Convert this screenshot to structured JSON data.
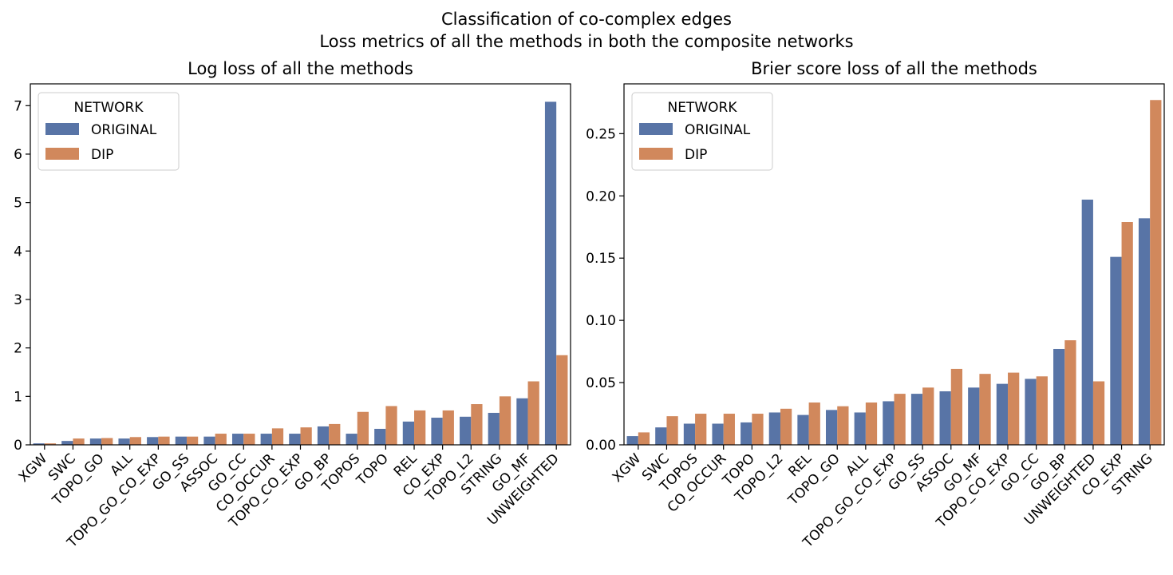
{
  "figure": {
    "suptitle_line1": "Classification of co-complex edges",
    "suptitle_line2": "Loss metrics of all the methods in both the composite networks"
  },
  "colors": {
    "ORIGINAL": "#5874a6",
    "DIP": "#d1885c"
  },
  "chart_data": [
    {
      "type": "bar",
      "title": "Log loss of all the methods",
      "xlabel": "",
      "ylabel": "",
      "ylim": [
        0,
        7.45
      ],
      "yticks": [
        0,
        1,
        2,
        3,
        4,
        5,
        6,
        7
      ],
      "grid": false,
      "legend": {
        "title": "NETWORK",
        "placement": "top-left"
      },
      "categories": [
        "XGW",
        "SWC",
        "TOPO_GO",
        "ALL",
        "TOPO_GO_CO_EXP",
        "GO_SS",
        "ASSOC",
        "GO_CC",
        "CO_OCCUR",
        "TOPO_CO_EXP",
        "GO_BP",
        "TOPOS",
        "TOPO",
        "REL",
        "CO_EXP",
        "TOPO_L2",
        "STRING",
        "GO_MF",
        "UNWEIGHTED"
      ],
      "series": [
        {
          "name": "ORIGINAL",
          "values": [
            0.03,
            0.08,
            0.13,
            0.13,
            0.16,
            0.17,
            0.17,
            0.23,
            0.23,
            0.23,
            0.38,
            0.23,
            0.33,
            0.48,
            0.56,
            0.58,
            0.66,
            0.96,
            7.08
          ]
        },
        {
          "name": "DIP",
          "values": [
            0.03,
            0.13,
            0.14,
            0.16,
            0.17,
            0.17,
            0.23,
            0.23,
            0.34,
            0.36,
            0.43,
            0.68,
            0.8,
            0.71,
            0.71,
            0.84,
            1.0,
            1.31,
            1.85
          ]
        }
      ]
    },
    {
      "type": "bar",
      "title": "Brier score loss of all the methods",
      "xlabel": "",
      "ylabel": "",
      "ylim": [
        0,
        0.29
      ],
      "yticks": [
        "0.00",
        "0.05",
        "0.10",
        "0.15",
        "0.20",
        "0.25"
      ],
      "grid": false,
      "legend": {
        "title": "NETWORK",
        "placement": "top-left"
      },
      "categories": [
        "XGW",
        "SWC",
        "TOPOS",
        "CO_OCCUR",
        "TOPO",
        "TOPO_L2",
        "REL",
        "TOPO_GO",
        "ALL",
        "TOPO_GO_CO_EXP",
        "GO_SS",
        "ASSOC",
        "GO_MF",
        "TOPO_CO_EXP",
        "GO_CC",
        "GO_BP",
        "UNWEIGHTED",
        "CO_EXP",
        "STRING"
      ],
      "series": [
        {
          "name": "ORIGINAL",
          "values": [
            0.007,
            0.014,
            0.017,
            0.017,
            0.018,
            0.026,
            0.024,
            0.028,
            0.026,
            0.035,
            0.041,
            0.043,
            0.046,
            0.049,
            0.053,
            0.077,
            0.197,
            0.151,
            0.182
          ]
        },
        {
          "name": "DIP",
          "values": [
            0.01,
            0.023,
            0.025,
            0.025,
            0.025,
            0.029,
            0.034,
            0.031,
            0.034,
            0.041,
            0.046,
            0.061,
            0.057,
            0.058,
            0.055,
            0.084,
            0.051,
            0.179,
            0.277
          ]
        }
      ]
    }
  ]
}
